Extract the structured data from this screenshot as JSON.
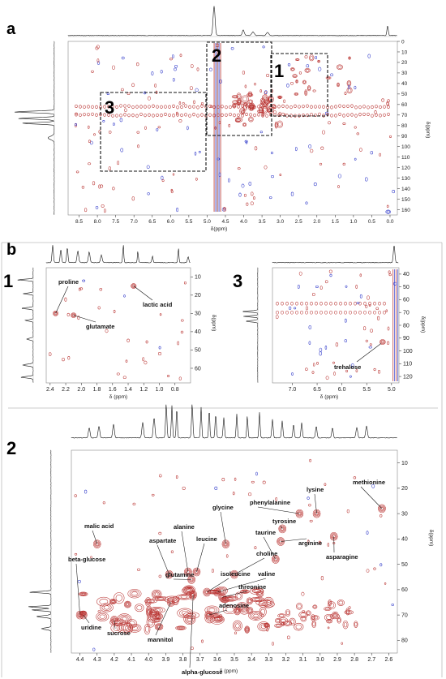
{
  "panel_a": {
    "tag": "a",
    "xlabel": "δ(ppm)",
    "ylabel": "δ(ppm)",
    "box_labels": [
      "1",
      "2",
      "3"
    ]
  },
  "panel_b": {
    "tag": "b",
    "sub1": {
      "tag": "1",
      "xlabel": "δ (ppm)",
      "ylabel": "δ(ppm)"
    },
    "sub2": {
      "tag": "2",
      "xlabel": "δ (ppm)",
      "ylabel": "δ(ppm)"
    },
    "sub3": {
      "tag": "3",
      "xlabel": "δ (ppm)",
      "ylabel": "δ(ppm)"
    }
  },
  "colors": {
    "positive": "#b8312f",
    "negative": "#2a34c8",
    "box": "#111111"
  },
  "chart_data": [
    {
      "id": "a",
      "type": "heatmap",
      "xlabel": "δ(ppm)",
      "ylabel": "δ(ppm)",
      "xlim": [
        8.8,
        -0.2
      ],
      "ylim": [
        0,
        165
      ],
      "x_ticks": [
        8.5,
        8.0,
        7.5,
        7.0,
        6.5,
        6.0,
        5.5,
        5.0,
        4.5,
        4.0,
        3.5,
        3.0,
        2.5,
        2.0,
        1.5,
        1.0,
        0.5,
        0.0
      ],
      "y_ticks": [
        0,
        10,
        20,
        30,
        40,
        50,
        60,
        70,
        80,
        90,
        100,
        110,
        120,
        130,
        140,
        150,
        160
      ],
      "regions": [
        {
          "label": "1",
          "x": [
            3.2,
            1.6
          ],
          "y": [
            10,
            70
          ]
        },
        {
          "label": "2",
          "x": [
            5.0,
            3.2
          ],
          "y": [
            0,
            88
          ]
        },
        {
          "label": "3",
          "x": [
            8.0,
            4.9
          ],
          "y": [
            48,
            122
          ]
        }
      ]
    },
    {
      "id": "b1",
      "type": "heatmap",
      "xlabel": "δ (ppm)",
      "ylabel": "δ(ppm)",
      "xlim": [
        2.45,
        0.6
      ],
      "ylim": [
        5,
        68
      ],
      "x_ticks": [
        2.4,
        2.2,
        2.0,
        1.8,
        1.6,
        1.4,
        1.2,
        1.0,
        0.8
      ],
      "y_ticks": [
        10,
        20,
        30,
        40,
        50,
        60
      ],
      "compounds": [
        {
          "name": "proline",
          "x": 2.33,
          "y": 30
        },
        {
          "name": "glutamate",
          "x": 2.1,
          "y": 31
        },
        {
          "name": "lactic acid",
          "x": 1.33,
          "y": 15
        }
      ]
    },
    {
      "id": "b3",
      "type": "heatmap",
      "xlabel": "δ (ppm)",
      "ylabel": "δ(ppm)",
      "xlim": [
        7.4,
        4.85
      ],
      "ylim": [
        35,
        125
      ],
      "x_ticks": [
        7.0,
        6.5,
        6.0,
        5.5,
        5.0
      ],
      "y_ticks": [
        40,
        50,
        60,
        70,
        80,
        90,
        100,
        110,
        120
      ],
      "compounds": [
        {
          "name": "trehalose",
          "x": 5.18,
          "y": 93
        }
      ]
    },
    {
      "id": "b2",
      "type": "heatmap",
      "xlabel": "δ (ppm)",
      "ylabel": "δ(ppm)",
      "xlim": [
        4.45,
        2.55
      ],
      "ylim": [
        5,
        85
      ],
      "x_ticks": [
        4.4,
        4.3,
        4.2,
        4.1,
        4.0,
        3.9,
        3.8,
        3.7,
        3.6,
        3.5,
        3.4,
        3.3,
        3.2,
        3.1,
        3.0,
        2.9,
        2.8,
        2.7,
        2.6
      ],
      "y_ticks": [
        10,
        20,
        30,
        40,
        50,
        60,
        70,
        80
      ],
      "compounds": [
        {
          "name": "methionine",
          "x": 2.64,
          "y": 28
        },
        {
          "name": "lysine",
          "x": 3.02,
          "y": 30
        },
        {
          "name": "phenylalanine",
          "x": 3.12,
          "y": 30
        },
        {
          "name": "glycine",
          "x": 3.55,
          "y": 42
        },
        {
          "name": "tyrosine",
          "x": 3.22,
          "y": 36
        },
        {
          "name": "taurine",
          "x": 3.26,
          "y": 48
        },
        {
          "name": "arginine",
          "x": 3.23,
          "y": 41
        },
        {
          "name": "malic acid",
          "x": 4.3,
          "y": 42
        },
        {
          "name": "alanine",
          "x": 3.77,
          "y": 53
        },
        {
          "name": "leucine",
          "x": 3.72,
          "y": 53
        },
        {
          "name": "aspartate",
          "x": 3.88,
          "y": 54
        },
        {
          "name": "choline",
          "x": 3.5,
          "y": 54
        },
        {
          "name": "asparagine",
          "x": 2.92,
          "y": 39
        },
        {
          "name": "beta-glucose",
          "x": 4.4,
          "y": 70
        },
        {
          "name": "glutamine",
          "x": 3.75,
          "y": 56
        },
        {
          "name": "isoleucine",
          "x": 3.66,
          "y": 61
        },
        {
          "name": "valine",
          "x": 3.6,
          "y": 61
        },
        {
          "name": "threonine",
          "x": 3.57,
          "y": 63
        },
        {
          "name": "adenosine",
          "x": 3.65,
          "y": 70
        },
        {
          "name": "uridine",
          "x": 4.38,
          "y": 70
        },
        {
          "name": "sucrose",
          "x": 4.2,
          "y": 72
        },
        {
          "name": "mannitol",
          "x": 3.87,
          "y": 65
        },
        {
          "name": "alpha-glucose",
          "x": 3.74,
          "y": 62
        }
      ]
    }
  ]
}
